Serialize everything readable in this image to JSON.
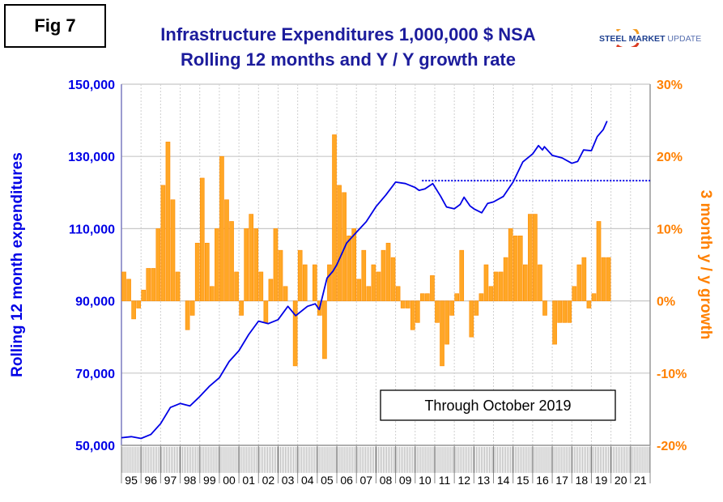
{
  "figure_label": "Fig 7",
  "logo_text": "STEEL MARKET UPDATE",
  "colors": {
    "line": "#0000e6",
    "bars": "#ffa726",
    "bar_edge": "#ff8c00",
    "title": "#1c1c9c",
    "left_axis": "#0000e6",
    "right_axis": "#ff8000"
  },
  "chart_data": {
    "type": "bar+line",
    "title": [
      "Infrastructure Expenditures 1,000,000 $ NSA",
      "Rolling 12 months and Y / Y growth rate"
    ],
    "ylabel_left": "Rolling 12 month expenditures",
    "ylabel_right": "3 month y / y growth",
    "annotation": "Through October 2019",
    "ylim_left": [
      50000,
      150000
    ],
    "yticks_left": [
      "150,000",
      "130,000",
      "110,000",
      "90,000",
      "70,000",
      "50,000"
    ],
    "ylim_right": [
      -20,
      30
    ],
    "yticks_right": [
      "30%",
      "20%",
      "10%",
      "0%",
      "-10%",
      "-20%"
    ],
    "xlim": [
      1995,
      2022
    ],
    "xtick_labels": [
      "95",
      "96",
      "97",
      "98",
      "99",
      "00",
      "01",
      "02",
      "03",
      "04",
      "05",
      "06",
      "07",
      "08",
      "09",
      "10",
      "11",
      "12",
      "13",
      "14",
      "15",
      "16",
      "17",
      "18",
      "19",
      "20",
      "21"
    ],
    "grid": true,
    "bars": {
      "axis": "right",
      "unit": "%",
      "start_year": 1995,
      "frequency": "quarterly",
      "values": [
        4,
        3,
        -2.5,
        -1,
        1.5,
        4.5,
        4.5,
        10,
        16,
        22,
        14,
        4,
        0,
        -4,
        -2,
        8,
        17,
        8,
        2,
        10,
        20,
        14,
        11,
        4,
        -2,
        10,
        12,
        10,
        4,
        -3,
        3,
        10,
        7,
        2,
        0,
        -9,
        7,
        5,
        0,
        5,
        -2,
        -8,
        5,
        23,
        16,
        15,
        9,
        10,
        3,
        7,
        2,
        5,
        4,
        7,
        8,
        6,
        2,
        -1,
        -1,
        -4,
        -3,
        1,
        1,
        3.5,
        -3,
        -9,
        -6,
        -2,
        1,
        7,
        0,
        -5,
        -2,
        1,
        5,
        2,
        4,
        4,
        6,
        10,
        9,
        9,
        5,
        12,
        12,
        5,
        -2,
        0,
        -6,
        -3,
        -3,
        -3,
        2,
        5,
        6,
        -1,
        1,
        11,
        6,
        6
      ]
    },
    "line": {
      "axis": "left",
      "points": [
        [
          1995.0,
          52100
        ],
        [
          1995.5,
          52400
        ],
        [
          1996.0,
          51900
        ],
        [
          1996.5,
          53000
        ],
        [
          1997.0,
          56000
        ],
        [
          1997.5,
          60500
        ],
        [
          1998.0,
          61600
        ],
        [
          1998.5,
          60900
        ],
        [
          1999.0,
          63500
        ],
        [
          1999.5,
          66400
        ],
        [
          2000.0,
          68700
        ],
        [
          2000.5,
          73200
        ],
        [
          2001.0,
          76200
        ],
        [
          2001.5,
          80700
        ],
        [
          2002.0,
          84400
        ],
        [
          2002.5,
          83700
        ],
        [
          2003.0,
          84800
        ],
        [
          2003.5,
          88500
        ],
        [
          2003.9,
          85900
        ],
        [
          2004.5,
          88500
        ],
        [
          2004.9,
          89200
        ],
        [
          2005.1,
          87600
        ],
        [
          2005.5,
          96300
        ],
        [
          2005.8,
          98200
        ],
        [
          2006.0,
          100000
        ],
        [
          2006.5,
          106000
        ],
        [
          2007.0,
          109000
        ],
        [
          2007.5,
          111900
        ],
        [
          2008.0,
          116100
        ],
        [
          2008.5,
          119300
        ],
        [
          2009.0,
          122900
        ],
        [
          2009.5,
          122500
        ],
        [
          2010.0,
          121400
        ],
        [
          2010.2,
          120600
        ],
        [
          2010.5,
          121000
        ],
        [
          2010.9,
          122500
        ],
        [
          2011.3,
          119000
        ],
        [
          2011.6,
          116000
        ],
        [
          2012.0,
          115500
        ],
        [
          2012.3,
          116700
        ],
        [
          2012.5,
          118700
        ],
        [
          2012.8,
          116300
        ],
        [
          2013.0,
          115500
        ],
        [
          2013.4,
          114400
        ],
        [
          2013.7,
          117000
        ],
        [
          2014.0,
          117400
        ],
        [
          2014.5,
          118900
        ],
        [
          2015.0,
          122900
        ],
        [
          2015.5,
          128500
        ],
        [
          2016.0,
          130700
        ],
        [
          2016.3,
          133000
        ],
        [
          2016.5,
          131800
        ],
        [
          2016.6,
          132700
        ],
        [
          2017.0,
          130300
        ],
        [
          2017.5,
          129600
        ],
        [
          2018.0,
          128100
        ],
        [
          2018.3,
          128600
        ],
        [
          2018.6,
          131800
        ],
        [
          2019.0,
          131600
        ],
        [
          2019.3,
          135500
        ],
        [
          2019.6,
          137400
        ],
        [
          2019.8,
          139800
        ]
      ]
    },
    "reference_line": {
      "axis": "left",
      "value": 123300,
      "x_start": 2010.35,
      "x_end": 2022,
      "style": "dotted"
    }
  }
}
